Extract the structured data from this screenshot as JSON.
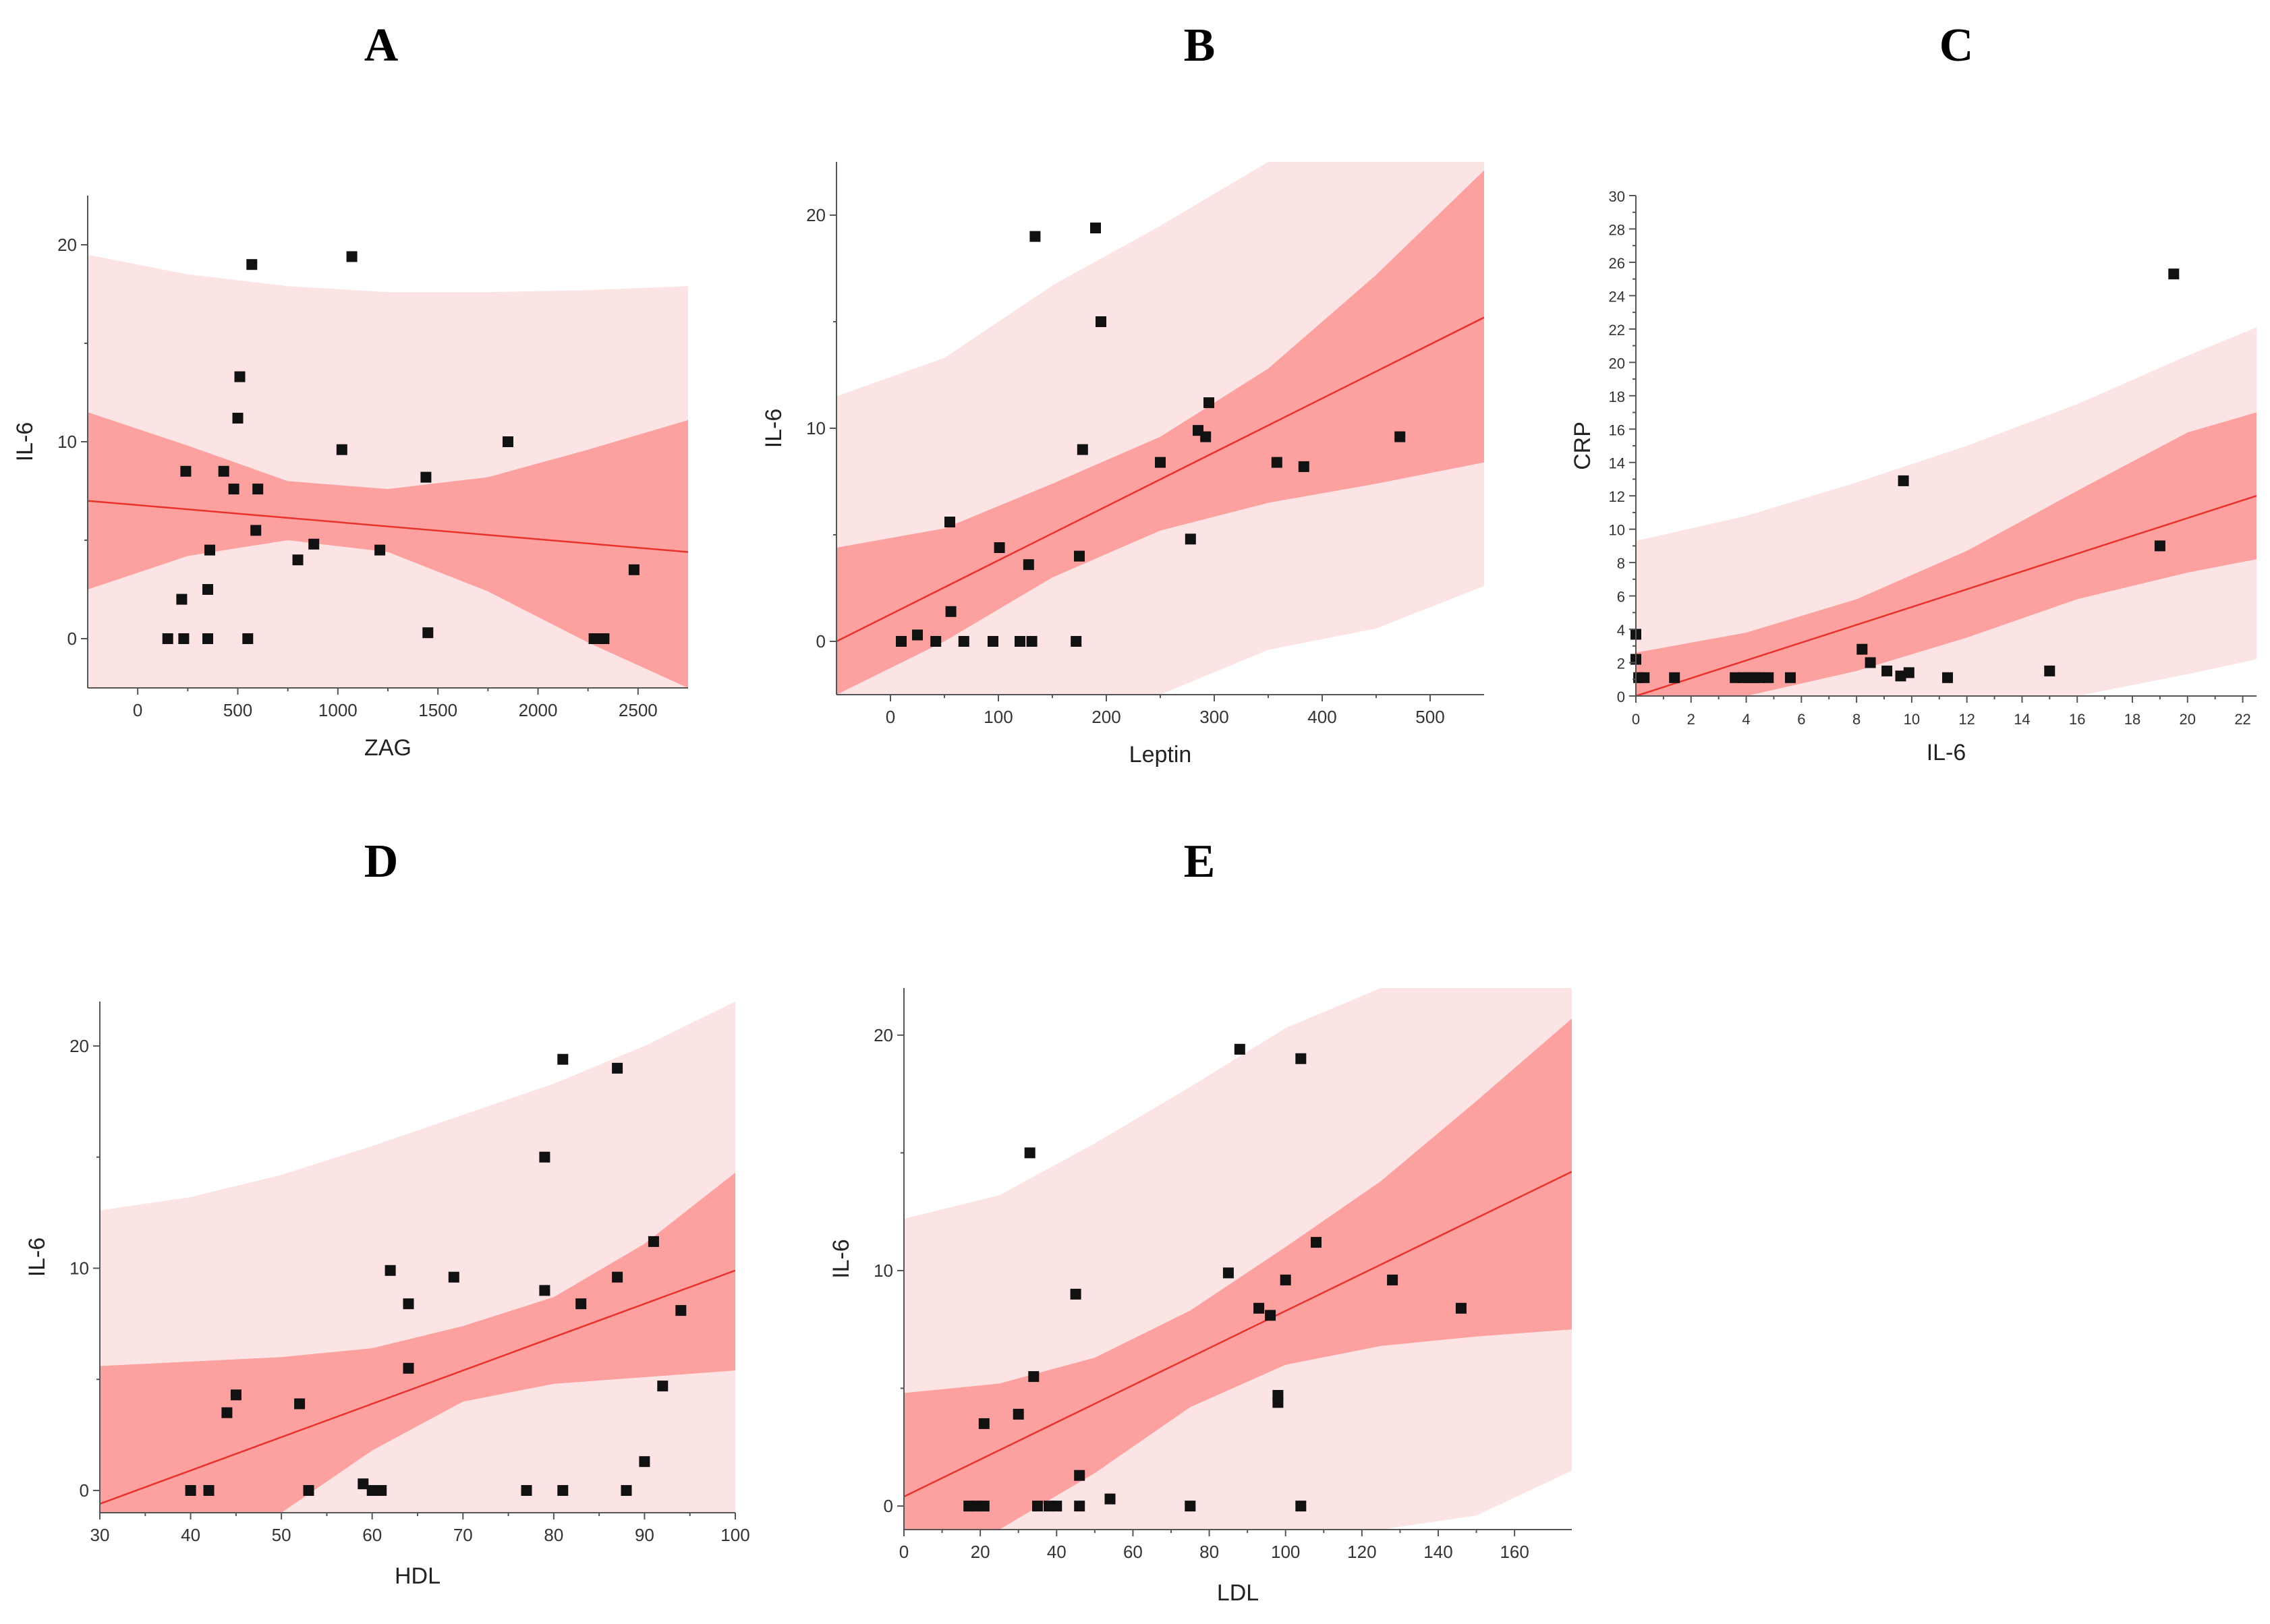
{
  "colors": {
    "prediction_band": "#fde4e4",
    "confidence_band": "#fca0a0",
    "fit_line": "#e8332c",
    "points": "#111111"
  },
  "chart_data": [
    {
      "id": "A",
      "type": "scatter",
      "panel_label": "A",
      "xlabel": "ZAG",
      "ylabel": "IL-6",
      "xlim": [
        -250,
        2750
      ],
      "ylim": [
        -2.5,
        22.5
      ],
      "xticks": [
        0,
        500,
        1000,
        1500,
        2000,
        2500
      ],
      "yticks": [
        0,
        10,
        20
      ],
      "fit": {
        "x": [
          -250,
          2750
        ],
        "y": [
          7.0,
          4.4
        ]
      },
      "confidence_band": {
        "x": [
          -250,
          250,
          750,
          1250,
          1750,
          2250,
          2750
        ],
        "lower": [
          2.5,
          4.2,
          5.0,
          4.4,
          2.4,
          -0.2,
          -2.5
        ],
        "upper": [
          11.5,
          9.8,
          8.0,
          7.6,
          8.2,
          9.6,
          11.1
        ]
      },
      "prediction_band": {
        "x": [
          -250,
          250,
          750,
          1250,
          1750,
          2250,
          2750
        ],
        "lower": [
          -2.5,
          -2.5,
          -2.5,
          -2.5,
          -2.5,
          -2.5,
          -2.5
        ],
        "upper": [
          19.5,
          18.5,
          17.9,
          17.6,
          17.6,
          17.7,
          17.9
        ]
      },
      "points": [
        [
          150,
          0
        ],
        [
          230,
          0
        ],
        [
          350,
          0
        ],
        [
          550,
          0
        ],
        [
          220,
          2
        ],
        [
          350,
          2.5
        ],
        [
          360,
          4.5
        ],
        [
          240,
          8.5
        ],
        [
          430,
          8.5
        ],
        [
          480,
          7.6
        ],
        [
          600,
          7.6
        ],
        [
          590,
          5.5
        ],
        [
          500,
          11.2
        ],
        [
          510,
          13.3
        ],
        [
          570,
          19
        ],
        [
          1070,
          19.4
        ],
        [
          1020,
          9.6
        ],
        [
          800,
          4
        ],
        [
          880,
          4.8
        ],
        [
          1210,
          4.5
        ],
        [
          1440,
          8.2
        ],
        [
          1450,
          0.3
        ],
        [
          1850,
          10
        ],
        [
          2280,
          0
        ],
        [
          2330,
          0
        ],
        [
          2480,
          3.5
        ]
      ]
    },
    {
      "id": "B",
      "type": "scatter",
      "panel_label": "B",
      "xlabel": "Leptin",
      "ylabel": "IL-6",
      "xlim": [
        -50,
        550
      ],
      "ylim": [
        -2.5,
        22.5
      ],
      "xticks": [
        0,
        100,
        200,
        300,
        400,
        500
      ],
      "yticks": [
        0,
        10,
        20
      ],
      "fit": {
        "x": [
          -50,
          550
        ],
        "y": [
          0.0,
          15.2
        ]
      },
      "confidence_band": {
        "x": [
          -50,
          50,
          150,
          250,
          350,
          450,
          550
        ],
        "lower": [
          -3.5,
          0.0,
          3.0,
          5.2,
          6.5,
          7.4,
          8.4
        ],
        "upper": [
          4.4,
          5.3,
          7.4,
          9.6,
          12.8,
          17.2,
          22.1
        ]
      },
      "prediction_band": {
        "x": [
          -50,
          50,
          150,
          250,
          350,
          450,
          550
        ],
        "lower": [
          -3.5,
          -3.5,
          -3.5,
          -2.5,
          -0.4,
          0.6,
          2.6
        ],
        "upper": [
          11.5,
          13.3,
          16.7,
          19.5,
          22.5,
          22.5,
          22.5
        ]
      },
      "points": [
        [
          10,
          0
        ],
        [
          25,
          0.3
        ],
        [
          42,
          0
        ],
        [
          55,
          5.6
        ],
        [
          56,
          1.4
        ],
        [
          68,
          0
        ],
        [
          95,
          0
        ],
        [
          101,
          4.4
        ],
        [
          120,
          0
        ],
        [
          128,
          3.6
        ],
        [
          131,
          0
        ],
        [
          134,
          19
        ],
        [
          172,
          0
        ],
        [
          175,
          4
        ],
        [
          178,
          9
        ],
        [
          190,
          19.4
        ],
        [
          195,
          15
        ],
        [
          250,
          8.4
        ],
        [
          278,
          4.8
        ],
        [
          285,
          9.9
        ],
        [
          292,
          9.6
        ],
        [
          295,
          11.2
        ],
        [
          358,
          8.4
        ],
        [
          383,
          8.2
        ],
        [
          472,
          9.6
        ]
      ]
    },
    {
      "id": "C",
      "type": "scatter",
      "panel_label": "C",
      "xlabel": "IL-6",
      "ylabel": "CRP",
      "xlim": [
        0,
        22.5
      ],
      "ylim": [
        0,
        30
      ],
      "xticks": [
        0,
        2,
        4,
        6,
        8,
        10,
        12,
        14,
        16,
        18,
        20,
        22
      ],
      "yticks": [
        0,
        2,
        4,
        6,
        8,
        10,
        12,
        14,
        16,
        18,
        20,
        22,
        24,
        26,
        28,
        30
      ],
      "fit": {
        "x": [
          0,
          22.5
        ],
        "y": [
          0.0,
          12.0
        ]
      },
      "confidence_band": {
        "x": [
          0,
          4,
          8,
          12,
          16,
          20,
          22.5
        ],
        "lower": [
          0,
          0,
          1.5,
          3.5,
          5.8,
          7.4,
          8.2
        ],
        "upper": [
          2.6,
          3.8,
          5.8,
          8.7,
          12.3,
          15.8,
          17.0
        ]
      },
      "prediction_band": {
        "x": [
          0,
          4,
          8,
          12,
          16,
          20,
          22.5
        ],
        "lower": [
          0,
          0,
          0,
          0,
          0,
          1.3,
          2.2
        ],
        "upper": [
          9.3,
          10.8,
          12.8,
          15.0,
          17.5,
          20.4,
          22.1
        ]
      },
      "points": [
        [
          0,
          3.7
        ],
        [
          0,
          2.2
        ],
        [
          0.1,
          1.1
        ],
        [
          0.3,
          1.1
        ],
        [
          1.4,
          1.1
        ],
        [
          3.6,
          1.1
        ],
        [
          3.9,
          1.1
        ],
        [
          4.1,
          1.1
        ],
        [
          4.3,
          1.1
        ],
        [
          4.5,
          1.1
        ],
        [
          4.8,
          1.1
        ],
        [
          5.6,
          1.1
        ],
        [
          8.2,
          2.8
        ],
        [
          8.5,
          2
        ],
        [
          9.1,
          1.5
        ],
        [
          9.6,
          1.2
        ],
        [
          9.9,
          1.4
        ],
        [
          9.7,
          12.9
        ],
        [
          11.3,
          1.1
        ],
        [
          15,
          1.5
        ],
        [
          19,
          9
        ],
        [
          19.5,
          25.3
        ]
      ]
    },
    {
      "id": "D",
      "type": "scatter",
      "panel_label": "D",
      "xlabel": "HDL",
      "ylabel": "IL-6",
      "xlim": [
        30,
        100
      ],
      "ylim": [
        -1,
        22
      ],
      "xticks": [
        30,
        40,
        50,
        60,
        70,
        80,
        90,
        100
      ],
      "yticks": [
        0,
        10,
        20
      ],
      "fit": {
        "x": [
          30,
          100
        ],
        "y": [
          -0.6,
          9.9
        ]
      },
      "confidence_band": {
        "x": [
          30,
          40,
          50,
          60,
          70,
          80,
          90,
          100
        ],
        "lower": [
          -1,
          -1,
          -1,
          1.8,
          4.0,
          4.8,
          5.1,
          5.4
        ],
        "upper": [
          5.6,
          5.8,
          6.0,
          6.4,
          7.4,
          8.7,
          11.1,
          14.3
        ]
      },
      "prediction_band": {
        "x": [
          30,
          40,
          50,
          60,
          70,
          80,
          90,
          100
        ],
        "lower": [
          -1,
          -1,
          -1,
          -1,
          -1,
          -1,
          -1,
          -1
        ],
        "upper": [
          12.6,
          13.2,
          14.2,
          15.5,
          16.9,
          18.3,
          20.0,
          22.0
        ]
      },
      "points": [
        [
          40,
          0
        ],
        [
          42,
          0
        ],
        [
          44,
          3.5
        ],
        [
          45,
          4.3
        ],
        [
          52,
          3.9
        ],
        [
          53,
          0
        ],
        [
          59,
          0.3
        ],
        [
          60,
          0
        ],
        [
          61,
          0
        ],
        [
          62,
          9.9
        ],
        [
          64,
          8.4
        ],
        [
          64,
          5.5
        ],
        [
          69,
          9.6
        ],
        [
          77,
          0
        ],
        [
          79,
          15
        ],
        [
          79,
          9
        ],
        [
          81,
          19.4
        ],
        [
          81,
          0
        ],
        [
          83,
          8.4
        ],
        [
          87,
          19
        ],
        [
          87,
          9.6
        ],
        [
          88,
          0
        ],
        [
          90,
          1.3
        ],
        [
          91,
          11.2
        ],
        [
          92,
          4.7
        ],
        [
          94,
          8.1
        ]
      ]
    },
    {
      "id": "E",
      "type": "scatter",
      "panel_label": "E",
      "xlabel": "LDL",
      "ylabel": "IL-6",
      "xlim": [
        0,
        175
      ],
      "ylim": [
        -1,
        22
      ],
      "xticks": [
        0,
        20,
        40,
        60,
        80,
        100,
        120,
        140,
        160
      ],
      "yticks": [
        0,
        10,
        20
      ],
      "fit": {
        "x": [
          0,
          175
        ],
        "y": [
          0.4,
          14.2
        ]
      },
      "confidence_band": {
        "x": [
          0,
          25,
          50,
          75,
          100,
          125,
          150,
          175
        ],
        "lower": [
          -1,
          -1,
          1.4,
          4.2,
          6.0,
          6.8,
          7.2,
          7.5
        ],
        "upper": [
          4.8,
          5.2,
          6.3,
          8.3,
          11.0,
          13.8,
          17.2,
          20.7
        ]
      },
      "prediction_band": {
        "x": [
          0,
          25,
          50,
          75,
          100,
          125,
          150,
          175
        ],
        "lower": [
          -1,
          -1,
          -1,
          -1,
          -1,
          -1,
          -0.4,
          1.5
        ],
        "upper": [
          12.2,
          13.2,
          15.4,
          17.8,
          20.3,
          22,
          22,
          22
        ]
      },
      "points": [
        [
          17,
          0
        ],
        [
          19,
          0
        ],
        [
          21,
          0
        ],
        [
          21,
          3.5
        ],
        [
          30,
          3.9
        ],
        [
          33,
          15
        ],
        [
          34,
          5.5
        ],
        [
          35,
          0
        ],
        [
          38,
          0
        ],
        [
          40,
          0
        ],
        [
          45,
          9
        ],
        [
          46,
          1.3
        ],
        [
          46,
          0
        ],
        [
          54,
          0.3
        ],
        [
          75,
          0
        ],
        [
          85,
          9.9
        ],
        [
          88,
          19.4
        ],
        [
          93,
          8.4
        ],
        [
          96,
          8.1
        ],
        [
          98,
          4.7
        ],
        [
          98,
          4.4
        ],
        [
          100,
          9.6
        ],
        [
          104,
          19
        ],
        [
          104,
          0
        ],
        [
          108,
          11.2
        ],
        [
          128,
          9.6
        ],
        [
          146,
          8.4
        ]
      ]
    }
  ]
}
